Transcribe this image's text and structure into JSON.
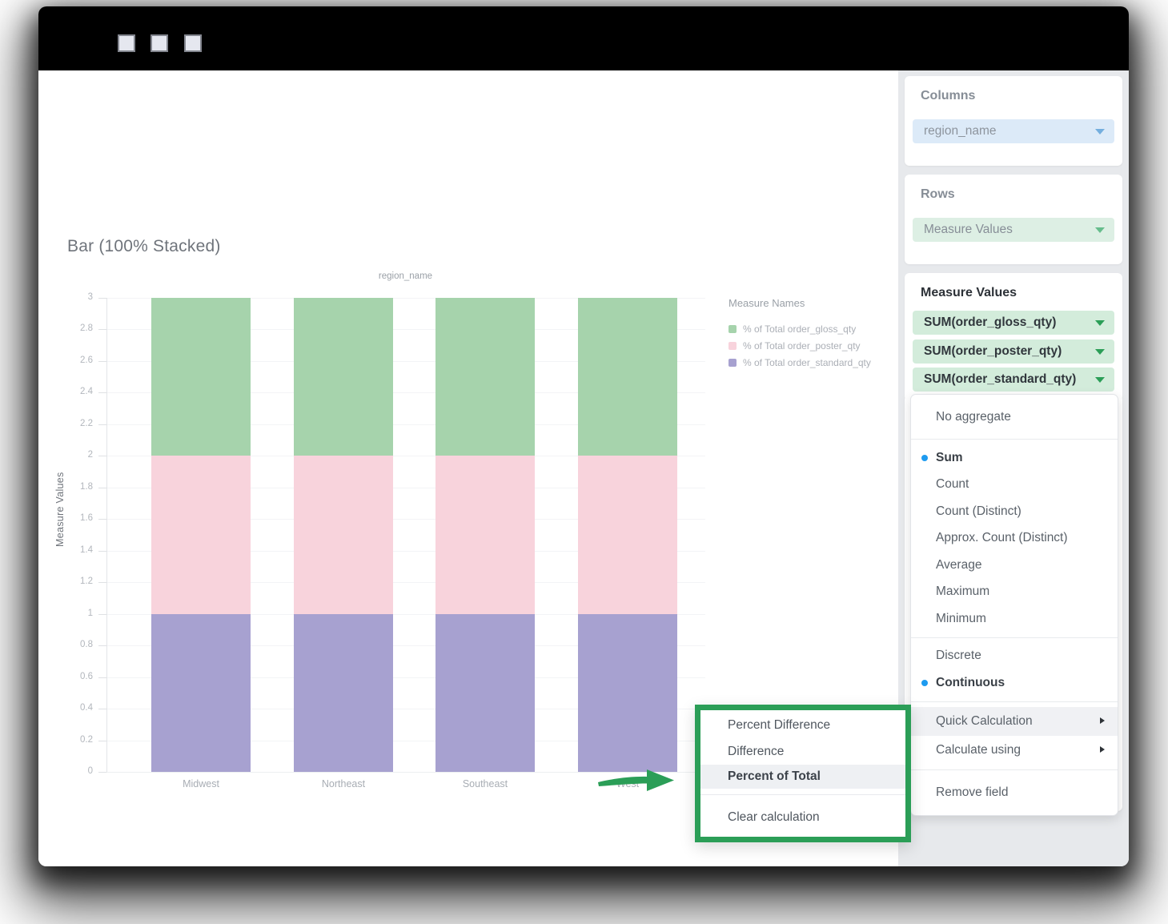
{
  "titlebar": {
    "window_buttons": [
      "window-button-1",
      "window-button-2",
      "window-button-3"
    ]
  },
  "chart": {
    "title": "Bar (100% Stacked)",
    "top_axis_label": "region_name",
    "y_axis_title": "Measure Values",
    "legend_title": "Measure Names",
    "legend": [
      {
        "label": "% of Total order_gloss_qty",
        "color": "#a6d3ac"
      },
      {
        "label": "% of Total order_poster_qty",
        "color": "#f8d3dc"
      },
      {
        "label": "% of Total order_standard_qty",
        "color": "#a7a1d0"
      }
    ]
  },
  "chart_data": {
    "type": "bar",
    "stacked": true,
    "title": "region_name",
    "categories": [
      "Midwest",
      "Northeast",
      "Southeast",
      "West"
    ],
    "series": [
      {
        "name": "% of Total order_standard_qty",
        "values": [
          1,
          1,
          1,
          1
        ],
        "color": "#a7a1d0"
      },
      {
        "name": "% of Total order_poster_qty",
        "values": [
          1,
          1,
          1,
          1
        ],
        "color": "#f8d3dc"
      },
      {
        "name": "% of Total order_gloss_qty",
        "values": [
          1,
          1,
          1,
          1
        ],
        "color": "#a6d3ac"
      }
    ],
    "xlabel": "region_name",
    "ylabel": "Measure Values",
    "ylim": [
      0,
      3
    ],
    "ytick_step": 0.2,
    "grid": true,
    "legend_position": "right"
  },
  "sidebar": {
    "columns": {
      "label": "Columns",
      "pill": "region_name"
    },
    "rows": {
      "label": "Rows",
      "pill": "Measure Values"
    },
    "measure_values": {
      "label": "Measure Values",
      "pills": [
        "SUM(order_gloss_qty)",
        "SUM(order_poster_qty)",
        "SUM(order_standard_qty)"
      ]
    }
  },
  "aggregate_menu": {
    "no_aggregate": {
      "label": "No aggregate"
    },
    "aggregations": [
      {
        "label": "Sum",
        "selected": true
      },
      {
        "label": "Count"
      },
      {
        "label": "Count (Distinct)"
      },
      {
        "label": "Approx. Count (Distinct)"
      },
      {
        "label": "Average"
      },
      {
        "label": "Maximum"
      },
      {
        "label": "Minimum"
      }
    ],
    "axis_type": [
      {
        "label": "Discrete"
      },
      {
        "label": "Continuous",
        "selected": true
      }
    ],
    "calculations": [
      {
        "label": "Quick Calculation",
        "has_submenu": true,
        "highlighted": true
      },
      {
        "label": "Calculate using",
        "has_submenu": true
      }
    ],
    "remove_field": {
      "label": "Remove field"
    }
  },
  "quick_calc_submenu": {
    "items": [
      {
        "label": "Percent Difference"
      },
      {
        "label": "Difference"
      },
      {
        "label": "Percent of Total",
        "highlighted": true
      },
      {
        "label": "Clear calculation"
      }
    ]
  },
  "colors": {
    "accent_green": "#2b9e57",
    "selected_dot_blue": "#1e9bf0",
    "pill_blue_bg": "#dceaf8",
    "pill_rows_bg": "#ddefe4",
    "pill_measure_bg": "#d3ecdb"
  }
}
